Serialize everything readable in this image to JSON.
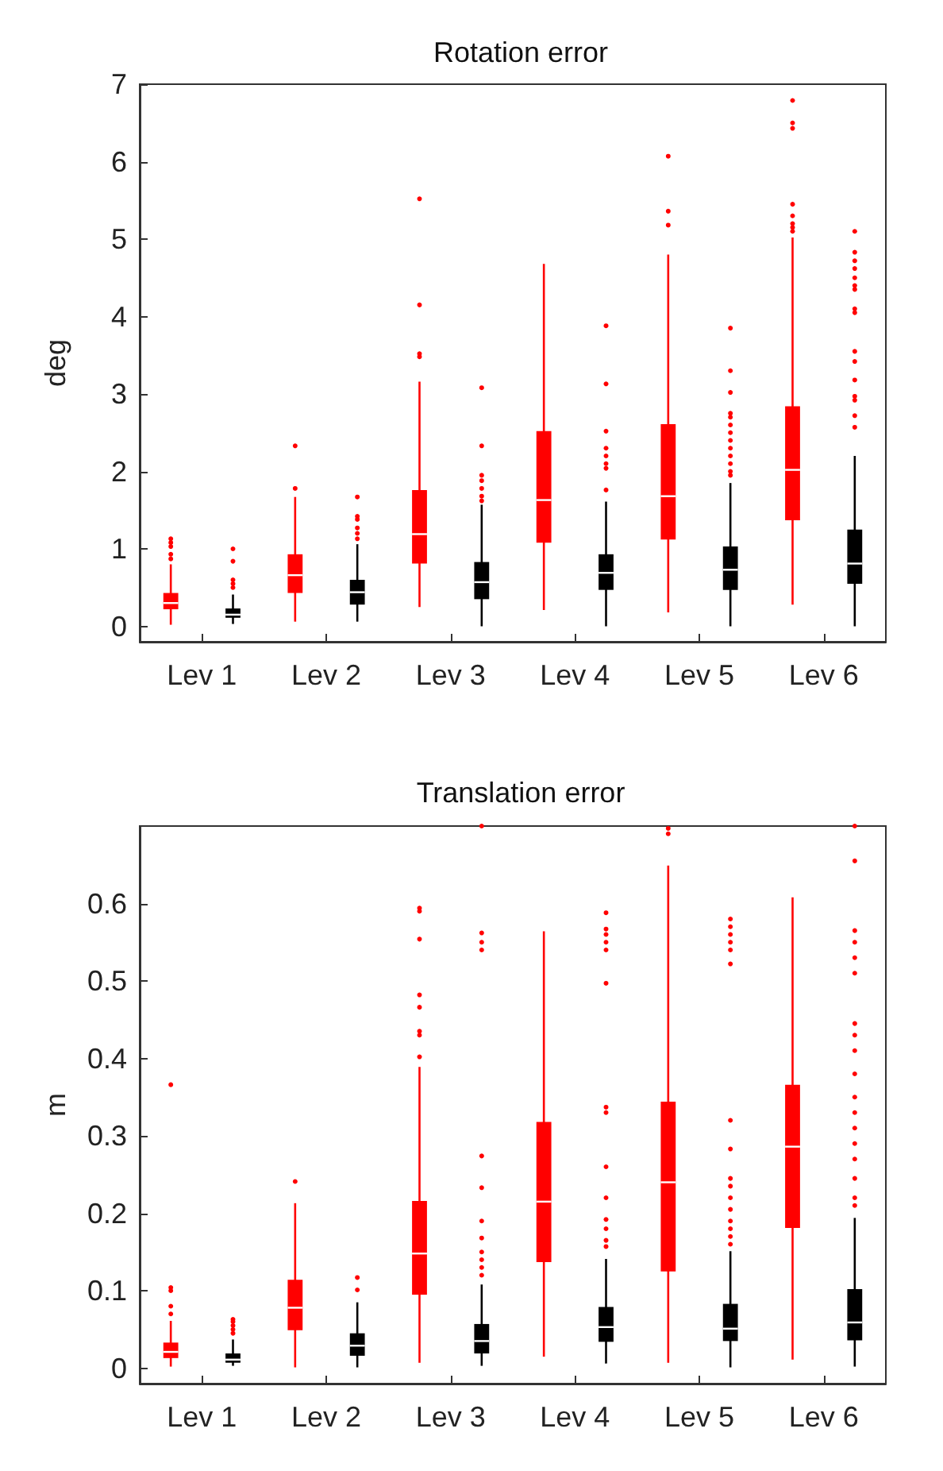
{
  "chart_data": [
    {
      "type": "box",
      "title": "Rotation error",
      "ylabel": "deg",
      "categories": [
        "Lev 1",
        "Lev 2",
        "Lev 3",
        "Lev 4",
        "Lev 5",
        "Lev 6"
      ],
      "ylim": [
        -0.2,
        7
      ],
      "yticks": [
        0,
        1,
        2,
        3,
        4,
        5,
        6,
        7
      ],
      "series": [
        {
          "color": "#ff0000",
          "boxes": [
            {
              "low": 0.02,
              "q1": 0.22,
              "median": 0.3,
              "q3": 0.43,
              "high": 0.8,
              "outliers": [
                0.87,
                0.93,
                1.03,
                1.08,
                1.13
              ]
            },
            {
              "low": 0.06,
              "q1": 0.43,
              "median": 0.66,
              "q3": 0.93,
              "high": 1.67,
              "outliers": [
                1.78,
                2.33
              ]
            },
            {
              "low": 0.25,
              "q1": 0.81,
              "median": 1.19,
              "q3": 1.76,
              "high": 3.16,
              "outliers": [
                3.48,
                3.52,
                4.15,
                5.52
              ]
            },
            {
              "low": 0.21,
              "q1": 1.08,
              "median": 1.63,
              "q3": 2.52,
              "high": 4.68
            },
            {
              "low": 0.18,
              "q1": 1.12,
              "median": 1.68,
              "q3": 2.61,
              "high": 4.8,
              "outliers": [
                5.18,
                5.36,
                6.07
              ]
            },
            {
              "low": 0.28,
              "q1": 1.37,
              "median": 2.02,
              "q3": 2.84,
              "high": 5.02,
              "outliers": [
                5.1,
                5.15,
                5.2,
                5.3,
                5.45,
                6.43,
                6.5,
                6.79
              ]
            }
          ]
        },
        {
          "color": "#000000",
          "boxes": [
            {
              "low": 0.03,
              "q1": 0.11,
              "median": 0.15,
              "q3": 0.23,
              "high": 0.41,
              "outliers": [
                0.5,
                0.55,
                0.6,
                0.84,
                1.0
              ]
            },
            {
              "low": 0.06,
              "q1": 0.28,
              "median": 0.44,
              "q3": 0.6,
              "high": 1.06,
              "outliers": [
                1.13,
                1.2,
                1.27,
                1.38,
                1.42,
                1.67
              ]
            },
            {
              "low": 0,
              "q1": 0.35,
              "median": 0.57,
              "q3": 0.83,
              "high": 1.57,
              "outliers": [
                1.62,
                1.68,
                1.78,
                1.88,
                1.95,
                2.33,
                3.08
              ]
            },
            {
              "low": 0,
              "q1": 0.47,
              "median": 0.69,
              "q3": 0.93,
              "high": 1.61,
              "outliers": [
                1.76,
                2.04,
                2.1,
                2.2,
                2.3,
                2.52,
                3.13,
                3.88
              ]
            },
            {
              "low": 0,
              "q1": 0.47,
              "median": 0.73,
              "q3": 1.03,
              "high": 1.85,
              "outliers": [
                1.95,
                2.0,
                2.1,
                2.2,
                2.3,
                2.4,
                2.5,
                2.6,
                2.7,
                2.75,
                3.02,
                3.3,
                3.85
              ]
            },
            {
              "low": 0,
              "q1": 0.55,
              "median": 0.81,
              "q3": 1.25,
              "high": 2.2,
              "outliers": [
                2.57,
                2.72,
                2.92,
                2.97,
                3.18,
                3.42,
                3.55,
                4.05,
                4.1,
                4.35,
                4.4,
                4.5,
                4.62,
                4.72,
                4.83,
                5.1
              ]
            }
          ]
        }
      ]
    },
    {
      "type": "box",
      "title": "Translation error",
      "ylabel": "m",
      "categories": [
        "Lev 1",
        "Lev 2",
        "Lev 3",
        "Lev 4",
        "Lev 5",
        "Lev 6"
      ],
      "ylim": [
        -0.02,
        0.7
      ],
      "yticks": [
        0,
        0.1,
        0.2,
        0.3,
        0.4,
        0.5,
        0.6
      ],
      "series": [
        {
          "color": "#ff0000",
          "boxes": [
            {
              "low": 0.002,
              "q1": 0.013,
              "median": 0.021,
              "q3": 0.033,
              "high": 0.061,
              "outliers": [
                0.07,
                0.08,
                0.1,
                0.104,
                0.366
              ]
            },
            {
              "low": 0.001,
              "q1": 0.049,
              "median": 0.078,
              "q3": 0.114,
              "high": 0.213,
              "outliers": [
                0.241
              ]
            },
            {
              "low": 0.007,
              "q1": 0.095,
              "median": 0.148,
              "q3": 0.216,
              "high": 0.389,
              "outliers": [
                0.402,
                0.43,
                0.435,
                0.466,
                0.482,
                0.554,
                0.59,
                0.594
              ]
            },
            {
              "low": 0.015,
              "q1": 0.137,
              "median": 0.215,
              "q3": 0.318,
              "high": 0.564
            },
            {
              "low": 0.007,
              "q1": 0.125,
              "median": 0.24,
              "q3": 0.344,
              "high": 0.649,
              "outliers": [
                0.69,
                0.697
              ]
            },
            {
              "low": 0.011,
              "q1": 0.181,
              "median": 0.286,
              "q3": 0.366,
              "high": 0.608
            }
          ]
        },
        {
          "color": "#000000",
          "boxes": [
            {
              "low": 0.003,
              "q1": 0.007,
              "median": 0.011,
              "q3": 0.019,
              "high": 0.037,
              "outliers": [
                0.045,
                0.05,
                0.055,
                0.06,
                0.063
              ]
            },
            {
              "low": 0.001,
              "q1": 0.016,
              "median": 0.029,
              "q3": 0.045,
              "high": 0.085,
              "outliers": [
                0.101,
                0.117
              ]
            },
            {
              "low": 0.003,
              "q1": 0.019,
              "median": 0.035,
              "q3": 0.057,
              "high": 0.108,
              "outliers": [
                0.12,
                0.13,
                0.14,
                0.15,
                0.168,
                0.19,
                0.233,
                0.274,
                0.54,
                0.55,
                0.562,
                0.7
              ]
            },
            {
              "low": 0.006,
              "q1": 0.034,
              "median": 0.053,
              "q3": 0.079,
              "high": 0.141,
              "outliers": [
                0.157,
                0.165,
                0.18,
                0.192,
                0.22,
                0.26,
                0.33,
                0.337,
                0.497,
                0.54,
                0.55,
                0.56,
                0.567,
                0.588
              ]
            },
            {
              "low": 0.001,
              "q1": 0.035,
              "median": 0.051,
              "q3": 0.083,
              "high": 0.151,
              "outliers": [
                0.16,
                0.17,
                0.18,
                0.19,
                0.205,
                0.22,
                0.235,
                0.245,
                0.283,
                0.32,
                0.522,
                0.54,
                0.55,
                0.56,
                0.57,
                0.58
              ]
            },
            {
              "low": 0.002,
              "q1": 0.036,
              "median": 0.059,
              "q3": 0.102,
              "high": 0.194,
              "outliers": [
                0.21,
                0.22,
                0.245,
                0.27,
                0.29,
                0.31,
                0.33,
                0.35,
                0.38,
                0.41,
                0.43,
                0.445,
                0.51,
                0.53,
                0.55,
                0.565,
                0.655,
                0.7
              ]
            }
          ]
        }
      ]
    }
  ]
}
